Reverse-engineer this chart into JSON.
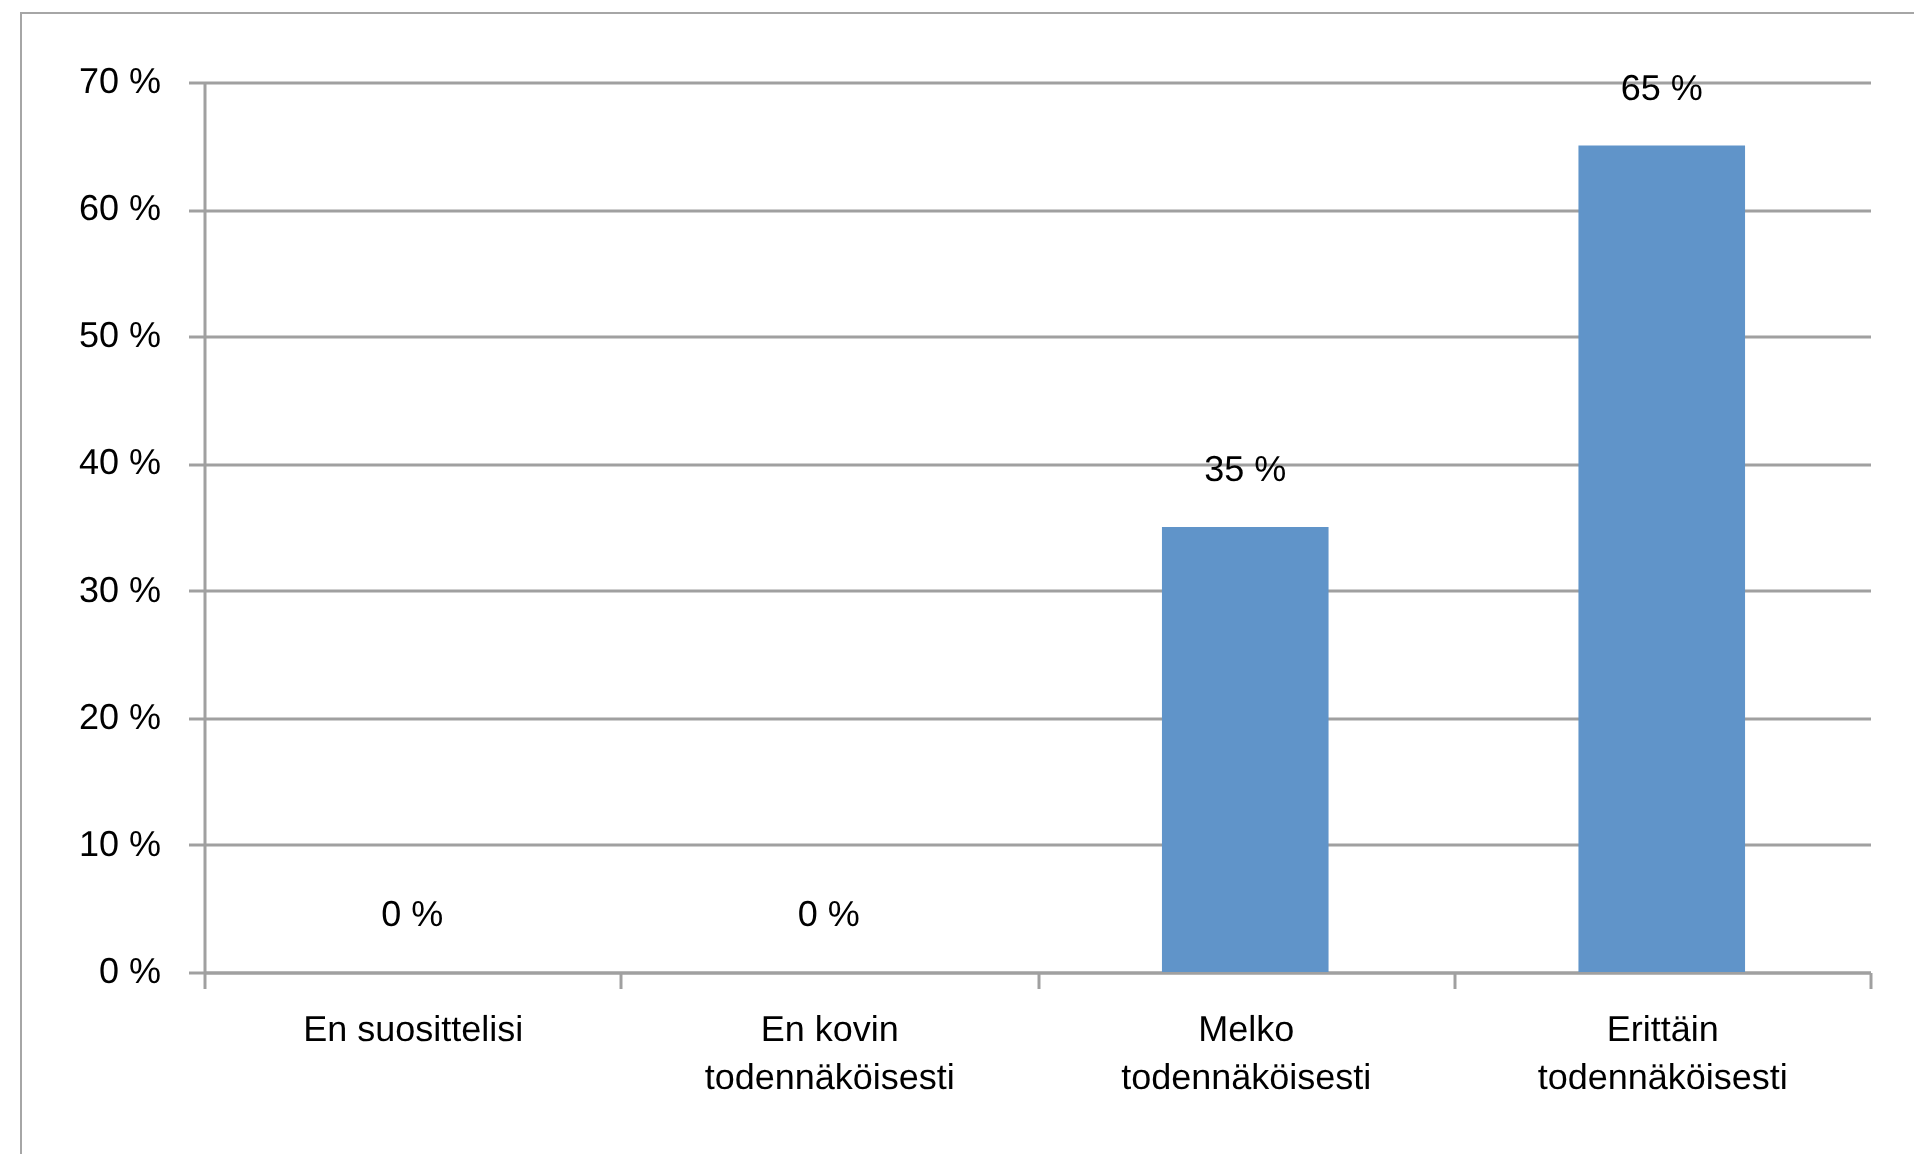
{
  "chart_data": {
    "type": "bar",
    "categories": [
      "En suosittelisi",
      "En kovin todennäköisesti",
      "Melko todennäköisesti",
      "Erittäin todennäköisesti"
    ],
    "values": [
      0,
      0,
      35,
      65
    ],
    "color": "#6094c9",
    "value_labels": [
      "0 %",
      "0 %",
      "35 %",
      "65 %"
    ],
    "ylim": [
      0,
      70
    ],
    "yticks": [
      {
        "value": 0,
        "label": "0 %"
      },
      {
        "value": 10,
        "label": "10 %"
      },
      {
        "value": 20,
        "label": "20 %"
      },
      {
        "value": 30,
        "label": "30 %"
      },
      {
        "value": 40,
        "label": "40 %"
      },
      {
        "value": 50,
        "label": "50 %"
      },
      {
        "value": 60,
        "label": "60 %"
      },
      {
        "value": 70,
        "label": "70 %"
      }
    ],
    "grid": "y"
  }
}
